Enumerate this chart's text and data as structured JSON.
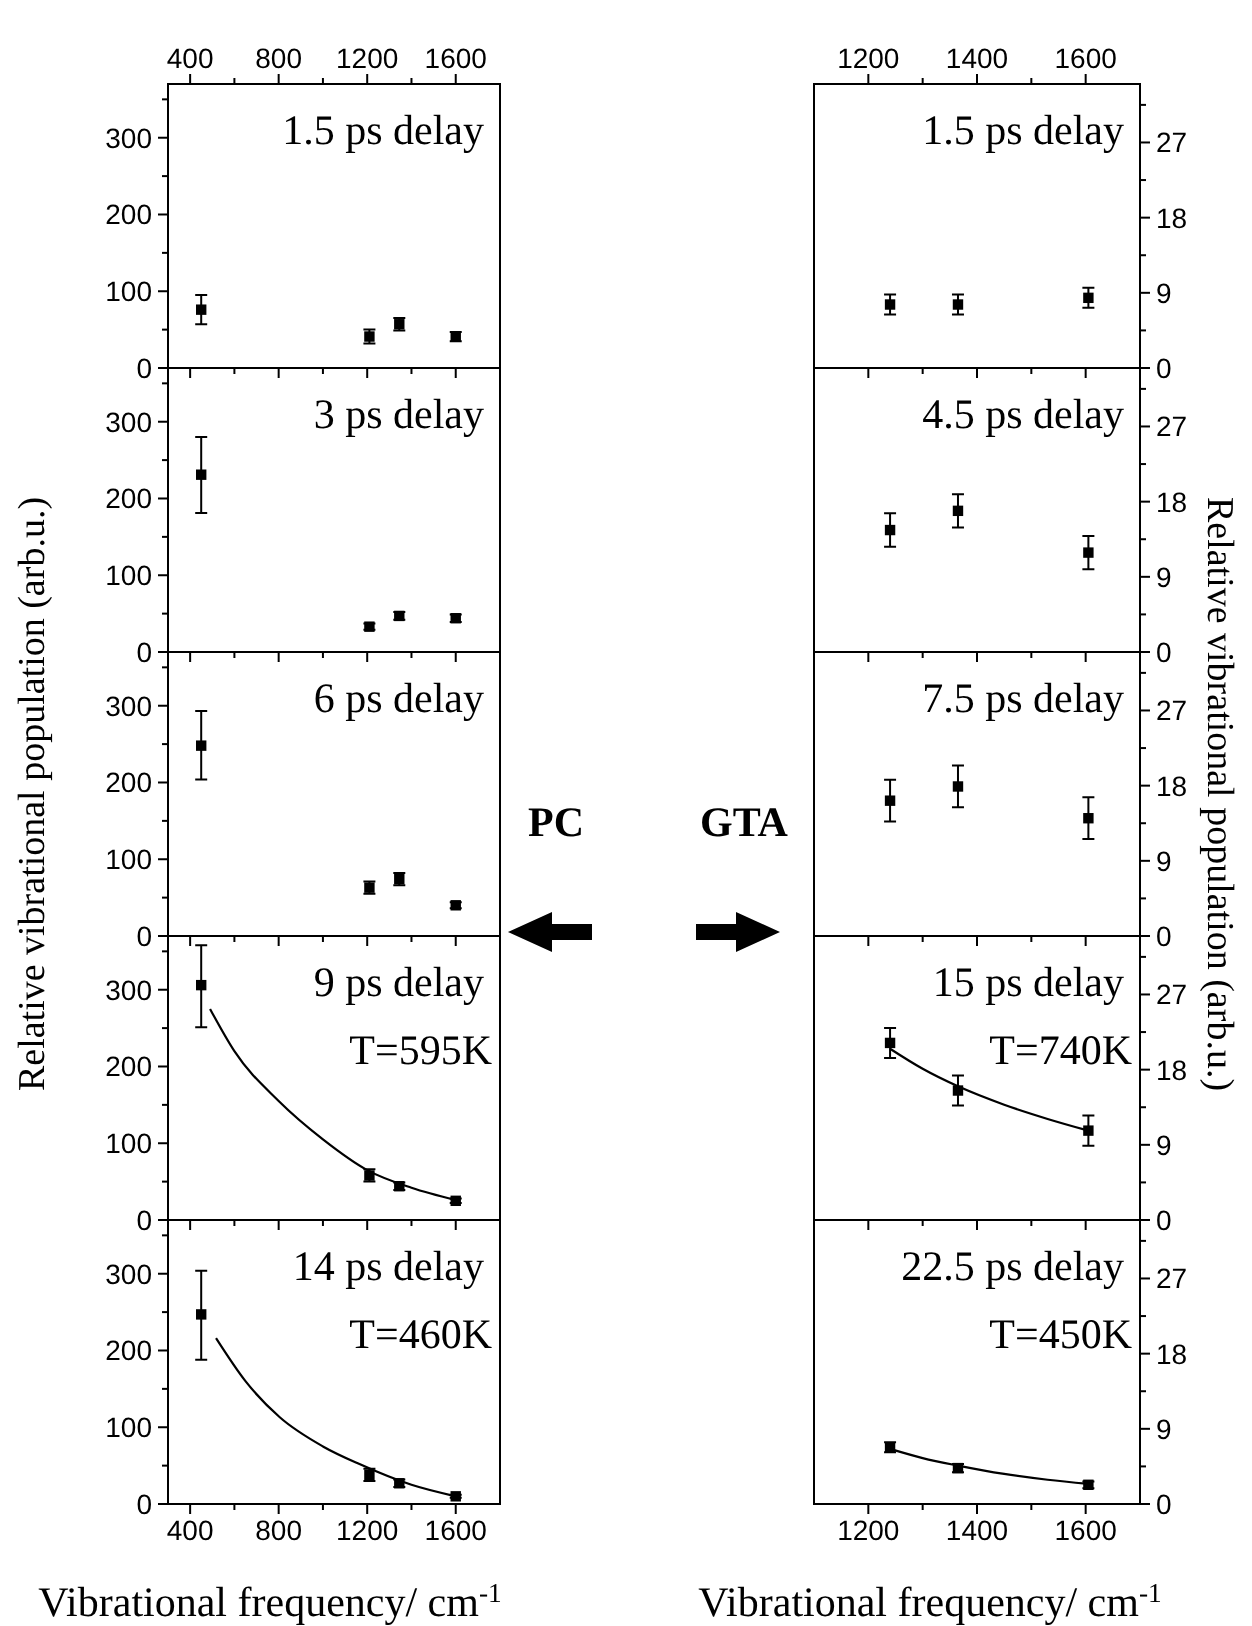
{
  "chart_data": [
    {
      "type": "scatter",
      "title": "1.5 ps delay",
      "tick_labels": "y",
      "xlim": [
        300,
        1800
      ],
      "xticks": [
        400,
        {
          "value": 600,
          "label": null
        },
        800,
        {
          "value": 1000,
          "label": null
        },
        1200,
        {
          "value": 1400,
          "label": null
        },
        1600
      ],
      "x2lim": [
        300,
        1800
      ],
      "x2ticks": [
        400,
        {
          "value": 600,
          "label": null
        },
        800,
        {
          "value": 1000,
          "label": null
        },
        1200,
        {
          "value": 1400,
          "label": null
        },
        1600
      ],
      "ylim": [
        0,
        370
      ],
      "yticks": [
        0,
        {
          "value": 50,
          "label": null
        },
        100,
        {
          "value": 150,
          "label": null
        },
        200,
        {
          "value": 250,
          "label": null
        },
        300,
        {
          "value": 350,
          "label": null
        }
      ],
      "x": [
        450,
        1210,
        1345,
        1600
      ],
      "series": [
        {
          "color": "#000000",
          "marker": "square",
          "values": [
            76,
            41,
            57,
            41
          ],
          "errors": [
            [
              57,
              95
            ],
            9,
            8,
            6
          ]
        }
      ]
    },
    {
      "type": "scatter",
      "title": "3 ps delay",
      "tick_labels": "y",
      "xlim": [
        300,
        1800
      ],
      "xticks": [
        400,
        {
          "value": 600,
          "label": null
        },
        800,
        {
          "value": 1000,
          "label": null
        },
        1200,
        {
          "value": 1400,
          "label": null
        },
        1600
      ],
      "ylim": [
        0,
        370
      ],
      "yticks": [
        0,
        {
          "value": 50,
          "label": null
        },
        100,
        {
          "value": 150,
          "label": null
        },
        200,
        {
          "value": 250,
          "label": null
        },
        300,
        {
          "value": 350,
          "label": null
        }
      ],
      "x": [
        450,
        1210,
        1345,
        1600
      ],
      "series": [
        {
          "color": "#000000",
          "marker": "square",
          "values": [
            231,
            33,
            47,
            44
          ],
          "errors": [
            [
              181,
              280
            ],
            4,
            5,
            5
          ]
        }
      ]
    },
    {
      "type": "scatter",
      "title": "6 ps delay",
      "ylabel": "Relative vibrational population (arb.u.)",
      "tick_labels": "y",
      "xlim": [
        300,
        1800
      ],
      "xticks": [
        400,
        {
          "value": 600,
          "label": null
        },
        800,
        {
          "value": 1000,
          "label": null
        },
        1200,
        {
          "value": 1400,
          "label": null
        },
        1600
      ],
      "ylim": [
        0,
        370
      ],
      "yticks": [
        0,
        {
          "value": 50,
          "label": null
        },
        100,
        {
          "value": 150,
          "label": null
        },
        200,
        {
          "value": 250,
          "label": null
        },
        300,
        {
          "value": 350,
          "label": null
        }
      ],
      "x": [
        450,
        1210,
        1345,
        1600
      ],
      "series": [
        {
          "color": "#000000",
          "marker": "square",
          "values": [
            248,
            63,
            74,
            40
          ],
          "errors": [
            [
              204,
              293
            ],
            8,
            8,
            4
          ]
        }
      ]
    },
    {
      "type": "scatter",
      "title": "9 ps delay",
      "annotations": [
        "T=595K"
      ],
      "tick_labels": "y",
      "xlim": [
        300,
        1800
      ],
      "xticks": [
        400,
        {
          "value": 600,
          "label": null
        },
        800,
        {
          "value": 1000,
          "label": null
        },
        1200,
        {
          "value": 1400,
          "label": null
        },
        1600
      ],
      "ylim": [
        0,
        370
      ],
      "yticks": [
        0,
        {
          "value": 50,
          "label": null
        },
        100,
        {
          "value": 150,
          "label": null
        },
        200,
        {
          "value": 250,
          "label": null
        },
        300,
        {
          "value": 350,
          "label": null
        }
      ],
      "x": [
        450,
        1210,
        1345,
        1600
      ],
      "series": [
        {
          "color": "#000000",
          "marker": "square",
          "values": [
            306,
            58,
            44,
            25
          ],
          "errors": [
            [
              251,
              358
            ],
            8,
            5,
            3
          ]
        },
        {
          "type": "line",
          "color": "#000000",
          "marker": "none",
          "x": [
            490,
            600,
            800,
            1000,
            1200,
            1400,
            1600
          ],
          "values": [
            275,
            220,
            155,
            105,
            65,
            42,
            26
          ]
        }
      ]
    },
    {
      "type": "scatter",
      "title": "14 ps delay",
      "annotations": [
        "T=460K"
      ],
      "xlabel": "Vibrational frequency/ cm$^{-1}$",
      "xlim": [
        300,
        1800
      ],
      "xticks": [
        400,
        {
          "value": 600,
          "label": null
        },
        800,
        {
          "value": 1000,
          "label": null
        },
        1200,
        {
          "value": 1400,
          "label": null
        },
        1600
      ],
      "ylim": [
        0,
        370
      ],
      "yticks": [
        0,
        {
          "value": 50,
          "label": null
        },
        100,
        {
          "value": 150,
          "label": null
        },
        200,
        {
          "value": 250,
          "label": null
        },
        300,
        {
          "value": 350,
          "label": null
        }
      ],
      "x": [
        450,
        1210,
        1345,
        1600
      ],
      "series": [
        {
          "color": "#000000",
          "marker": "square",
          "values": [
            247,
            38,
            27,
            10
          ],
          "errors": [
            [
              188,
              304
            ],
            8,
            5,
            2
          ]
        },
        {
          "type": "line",
          "color": "#000000",
          "marker": "none",
          "x": [
            517,
            650,
            805,
            1000,
            1165,
            1400,
            1600
          ],
          "values": [
            216,
            160,
            113,
            75,
            52,
            25,
            10
          ]
        }
      ]
    },
    {
      "type": "scatter",
      "title": "1.5 ps delay",
      "tick_labels": "y",
      "xlim": [
        1100,
        1700
      ],
      "xticks": [
        1200,
        {
          "value": 1300,
          "label": null
        },
        1400,
        {
          "value": 1500,
          "label": null
        },
        1600
      ],
      "x2lim": [
        1100,
        1700
      ],
      "x2ticks": [
        1200,
        {
          "value": 1300,
          "label": null
        },
        1400,
        {
          "value": 1500,
          "label": null
        },
        1600
      ],
      "ylim": [
        0,
        34
      ],
      "yticks": [
        0,
        {
          "value": 4.5,
          "label": null
        },
        9,
        {
          "value": 13.5,
          "label": null
        },
        18,
        {
          "value": 22.5,
          "label": null
        },
        27,
        {
          "value": 31.5,
          "label": null
        }
      ],
      "x": [
        1240,
        1365,
        1605
      ],
      "series": [
        {
          "color": "#000000",
          "marker": "square",
          "values": [
            7.6,
            7.6,
            8.4
          ],
          "errors": [
            1.2,
            1.2,
            1.2
          ]
        }
      ]
    },
    {
      "type": "scatter",
      "title": "4.5 ps delay",
      "tick_labels": "y",
      "xlim": [
        1100,
        1700
      ],
      "xticks": [
        1200,
        {
          "value": 1300,
          "label": null
        },
        1400,
        {
          "value": 1500,
          "label": null
        },
        1600
      ],
      "ylim": [
        0,
        34
      ],
      "yticks": [
        0,
        {
          "value": 4.5,
          "label": null
        },
        9,
        {
          "value": 13.5,
          "label": null
        },
        18,
        {
          "value": 22.5,
          "label": null
        },
        27,
        {
          "value": 31.5,
          "label": null
        }
      ],
      "x": [
        1240,
        1365,
        1605
      ],
      "series": [
        {
          "color": "#000000",
          "marker": "square",
          "values": [
            14.6,
            16.9,
            11.9
          ],
          "errors": [
            2,
            2,
            2
          ]
        }
      ]
    },
    {
      "type": "scatter",
      "title": "7.5 ps delay",
      "ylabel": "Relative vibrational population (arb.u.)",
      "tick_labels": "y",
      "xlim": [
        1100,
        1700
      ],
      "xticks": [
        1200,
        {
          "value": 1300,
          "label": null
        },
        1400,
        {
          "value": 1500,
          "label": null
        },
        1600
      ],
      "ylim": [
        0,
        34
      ],
      "yticks": [
        0,
        {
          "value": 4.5,
          "label": null
        },
        9,
        {
          "value": 13.5,
          "label": null
        },
        18,
        {
          "value": 22.5,
          "label": null
        },
        27,
        {
          "value": 31.5,
          "label": null
        }
      ],
      "x": [
        1240,
        1365,
        1605
      ],
      "series": [
        {
          "color": "#000000",
          "marker": "square",
          "values": [
            16.2,
            17.9,
            14.1
          ],
          "errors": [
            2.5,
            2.5,
            2.5
          ]
        }
      ]
    },
    {
      "type": "scatter",
      "title": "15 ps delay",
      "annotations": [
        "T=740K"
      ],
      "tick_labels": "y",
      "xlim": [
        1100,
        1700
      ],
      "xticks": [
        1200,
        {
          "value": 1300,
          "label": null
        },
        1400,
        {
          "value": 1500,
          "label": null
        },
        1600
      ],
      "ylim": [
        0,
        34
      ],
      "yticks": [
        0,
        {
          "value": 4.5,
          "label": null
        },
        9,
        {
          "value": 13.5,
          "label": null
        },
        18,
        {
          "value": 22.5,
          "label": null
        },
        27,
        {
          "value": 31.5,
          "label": null
        }
      ],
      "x": [
        1240,
        1365,
        1605
      ],
      "series": [
        {
          "color": "#000000",
          "marker": "square",
          "values": [
            21.2,
            15.5,
            10.7
          ],
          "errors": [
            1.8,
            1.8,
            1.8
          ]
        },
        {
          "type": "line",
          "color": "#000000",
          "marker": "none",
          "x": [
            1240,
            1300,
            1365,
            1450,
            1530,
            1605
          ],
          "values": [
            20.5,
            18.1,
            16,
            13.8,
            12.1,
            10.7
          ]
        }
      ]
    },
    {
      "type": "scatter",
      "title": "22.5 ps delay",
      "annotations": [
        "T=450K"
      ],
      "xlabel": "Vibrational frequency/ cm$^{-1}$",
      "xlim": [
        1100,
        1700
      ],
      "xticks": [
        1200,
        {
          "value": 1300,
          "label": null
        },
        1400,
        {
          "value": 1500,
          "label": null
        },
        1600
      ],
      "ylim": [
        0,
        34
      ],
      "yticks": [
        0,
        {
          "value": 4.5,
          "label": null
        },
        9,
        {
          "value": 13.5,
          "label": null
        },
        18,
        {
          "value": 22.5,
          "label": null
        },
        27,
        {
          "value": 31.5,
          "label": null
        }
      ],
      "x": [
        1240,
        1365,
        1605
      ],
      "series": [
        {
          "color": "#000000",
          "marker": "square",
          "values": [
            6.8,
            4.3,
            2.3
          ],
          "errors": [
            0.6,
            0.5,
            0.4
          ]
        },
        {
          "type": "line",
          "color": "#000000",
          "marker": "none",
          "x": [
            1240,
            1300,
            1365,
            1450,
            1530,
            1605
          ],
          "values": [
            6.6,
            5.5,
            4.6,
            3.6,
            2.9,
            2.4
          ]
        }
      ]
    },
    {
      "type": "other",
      "annotations": [
        "PC",
        "GTA"
      ]
    }
  ]
}
